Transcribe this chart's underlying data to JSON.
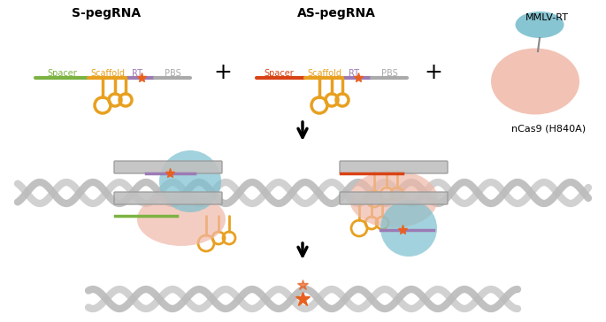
{
  "bg_color": "#ffffff",
  "orange": "#F5A623",
  "gold": "#E8A020",
  "green": "#7CB342",
  "red": "#D84315",
  "purple": "#9C7BB5",
  "gray": "#AAAAAA",
  "blue_oval": "#7BBFCF",
  "pink_blob": "#F0B8A8",
  "dna_gray": "#CCCCCC",
  "dna_dark": "#AAAAAA",
  "text_color": "#000000",
  "title1": "S-pegRNA",
  "title2": "AS-pegRNA",
  "label_mmlv": "MMLV-RT",
  "label_ncas9": "nCas9 (H840A)",
  "label_spacer": "Spacer",
  "label_scaffold": "Scaffold",
  "label_rt": "RT",
  "label_pbs": "PBS"
}
